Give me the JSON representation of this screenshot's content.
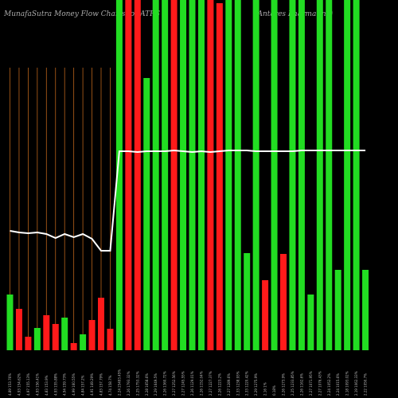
{
  "chart_data": {
    "type": "bar",
    "title": "MunafaSutra  Money Flow  Charts for ATRS",
    "subtitle": "(Antares Pharma Inc)",
    "categories": [
      "4.89 153.76%",
      "4.93 154.62%",
      "4.97 155.13%",
      "4.93 156.41%",
      "4.83 153.9%",
      "4.93 155.88%",
      "4.94 159.73%",
      "4.99 160.55%",
      "4.84 157.2%",
      "4.91 149.29%",
      "4.83 157.79%",
      "4.74 158.7%",
      "2.24 25493.45%",
      "2.26 1793.32%",
      "2.25 1753.32%",
      "2.28 1658.6%",
      "2.29 1649.5%",
      "2.26 1360.72%",
      "2.27 1252.56%",
      "2.27 1245.55%",
      "2.26 1129.01%",
      "2.26 1152.04%",
      "2.27 1227.37%",
      "2.26 1223.2%",
      "2.27 1289.6%",
      "2.33 1238.93%",
      "2.33 1220.42%",
      "2.29 1275.9%",
      "2.16 1%",
      "0.18%",
      "2.26 1273.9%",
      "2.25 1233.85%",
      "2.26 1162.6%",
      "2.27 1071.95%",
      "2.27 1076.43%",
      "2.24 1052.2%",
      "2.24 1015.6%",
      "2.18 1093.02%",
      "2.19 1062.33%",
      "2.22 1050.7%"
    ],
    "values": [
      70,
      52,
      17,
      28,
      44,
      33,
      41,
      9,
      20,
      38,
      66,
      27,
      440,
      440,
      440,
      342,
      440,
      440,
      440,
      440,
      440,
      440,
      440,
      436,
      440,
      440,
      122,
      440,
      88,
      440,
      121,
      440,
      440,
      70,
      440,
      440,
      101,
      440,
      440,
      101
    ],
    "colors": [
      "#22dd22",
      "#ff1a1a",
      "#ff1a1a",
      "#22dd22",
      "#ff1a1a",
      "#ff1a1a",
      "#22dd22",
      "#ff1a1a",
      "#22dd22",
      "#ff1a1a",
      "#ff1a1a",
      "#ff1a1a",
      "#22dd22",
      "#ff1a1a",
      "#ff1a1a",
      "#22dd22",
      "#22dd22",
      "#22dd22",
      "#ff1a1a",
      "#22dd22",
      "#22dd22",
      "#22dd22",
      "#ff1a1a",
      "#ff1a1a",
      "#22dd22",
      "#22dd22",
      "#22dd22",
      "#22dd22",
      "#ff1a1a",
      "#22dd22",
      "#ff1a1a",
      "#22dd22",
      "#22dd22",
      "#22dd22",
      "#22dd22",
      "#22dd22",
      "#22dd22",
      "#22dd22",
      "#22dd22",
      "#22dd22"
    ],
    "line": {
      "color": "#ffffff",
      "values": [
        150,
        148,
        147,
        148,
        146,
        141,
        146,
        142,
        146,
        140,
        125,
        125,
        250,
        250,
        249,
        250,
        250,
        250,
        251,
        250,
        249,
        250,
        249,
        250,
        251,
        251,
        251,
        250,
        250,
        250,
        250,
        250,
        251,
        251,
        251,
        251,
        251,
        251,
        251,
        251
      ]
    },
    "ylim": [
      0,
      440
    ]
  }
}
